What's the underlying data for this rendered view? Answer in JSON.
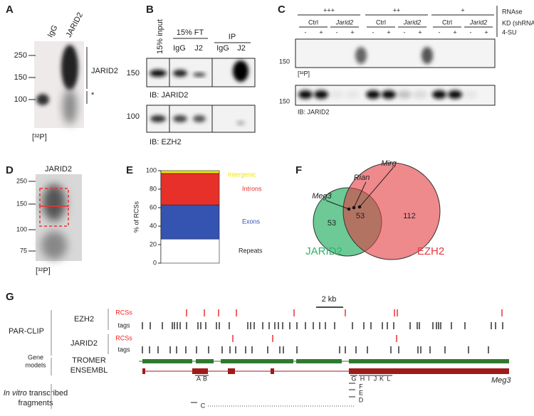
{
  "panel_a": {
    "label": "A",
    "lanes": [
      "IgG",
      "JARID2"
    ],
    "markers": [
      "250",
      "150",
      "100"
    ],
    "band_label": "JARID2",
    "asterisk": "*",
    "caption": "[³²P]"
  },
  "panel_b": {
    "label": "B",
    "input": "15% input",
    "ft": "15% FT",
    "ip": "IP",
    "lanes": [
      "IgG",
      "J2",
      "IgG",
      "J2"
    ],
    "marker_top": "150",
    "marker_bottom": "100",
    "ib_top": "IB: JARID2",
    "ib_bottom": "IB: EZH2"
  },
  "panel_c": {
    "label": "C",
    "rnase_levels": [
      "+++",
      "++",
      "+"
    ],
    "rnase": "RNAse",
    "kd": [
      "Ctrl",
      "Jarid2",
      "Ctrl",
      "Jarid2",
      "Ctrl",
      "Jarid2"
    ],
    "kd_label": "KD (shRNA)",
    "su": [
      "-",
      "+",
      "-",
      "+",
      "-",
      "+",
      "-",
      "+",
      "-",
      "+",
      "-",
      "+"
    ],
    "su_label": "4-SU",
    "marker_top": "150",
    "marker_bottom": "150",
    "caption_top": "[³²P]",
    "ib": "IB: JARID2"
  },
  "panel_d": {
    "label": "D",
    "title": "JARID2",
    "markers": [
      "250",
      "150",
      "100",
      "75"
    ],
    "caption": "[³²P]"
  },
  "panel_e": {
    "label": "E"
  },
  "chart_data": {
    "type": "stacked_bar",
    "ylabel": "% of RCSs",
    "ylim": [
      0,
      100
    ],
    "yticks": [
      0,
      20,
      40,
      60,
      80,
      100
    ],
    "series": [
      {
        "name": "Repeats",
        "color": "#ffffff",
        "values": [
          26
        ]
      },
      {
        "name": "Exons",
        "color": "#3553b0",
        "values": [
          37
        ]
      },
      {
        "name": "Introns",
        "color": "#e8302a",
        "values": [
          34
        ]
      },
      {
        "name": "Intergenic",
        "color": "#f3e500",
        "values": [
          3
        ]
      }
    ]
  },
  "panel_f": {
    "label": "F",
    "sets": [
      {
        "name": "JARID2",
        "color": "#2fb26a"
      },
      {
        "name": "EZH2",
        "color": "#e23a3f"
      }
    ],
    "counts": [
      "53",
      "53",
      "112"
    ],
    "genes": [
      "Meg3",
      "Rian",
      "Mirg"
    ]
  },
  "panel_g": {
    "label": "G",
    "scale": "2 kb",
    "method": "PAR-CLIP",
    "proteins": [
      "EZH2",
      "JARID2"
    ],
    "rcs": "RCSs",
    "tags": "tags",
    "gene_models": [
      "Gene",
      "models"
    ],
    "tracks": [
      "TROMER",
      "ENSEMBL"
    ],
    "gene": "Meg3",
    "fragments": [
      "A",
      "B",
      "G",
      "H",
      "I",
      "J",
      "K",
      "L",
      "F",
      "E",
      "D",
      "C"
    ],
    "fragments_title": {
      "italic": "In vitro",
      "rest": "transcribed",
      "line2": "fragments"
    }
  }
}
